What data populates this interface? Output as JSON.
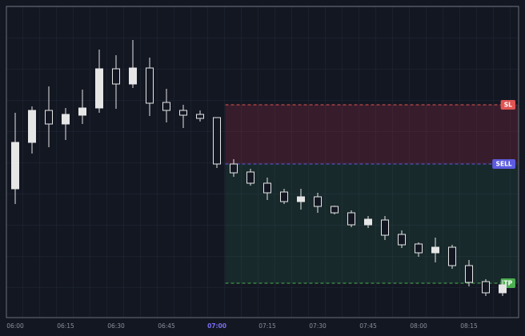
{
  "chart_data": {
    "type": "candlestick",
    "categories": [
      "06:00",
      null,
      null,
      "06:15",
      null,
      null,
      "06:30",
      null,
      null,
      "06:45",
      null,
      null,
      "07:00",
      null,
      null,
      "07:15",
      null,
      null,
      "07:30",
      null,
      null,
      "07:45",
      null,
      null,
      "08:00",
      null,
      null,
      "08:15",
      null,
      null
    ],
    "open": [
      164,
      222,
      262,
      245,
      256,
      265,
      314,
      295,
      315,
      272,
      262,
      257,
      253,
      195,
      185,
      171,
      160,
      148,
      154,
      142,
      134,
      119,
      125,
      107,
      95,
      84,
      91,
      68,
      48,
      34
    ],
    "high": [
      259,
      267,
      292,
      265,
      288,
      338,
      331,
      350,
      328,
      289,
      269,
      262,
      253,
      201,
      189,
      178,
      164,
      164,
      159,
      143,
      137,
      130,
      130,
      112,
      97,
      103,
      94,
      75,
      51,
      50
    ],
    "low": [
      145,
      208,
      216,
      225,
      245,
      259,
      264,
      290,
      255,
      247,
      240,
      248,
      190,
      179,
      168,
      150,
      145,
      138,
      134,
      132,
      116,
      115,
      100,
      90,
      79,
      72,
      64,
      42,
      30,
      30
    ],
    "close": [
      222,
      262,
      245,
      257,
      265,
      314,
      295,
      315,
      271,
      262,
      256,
      252,
      195,
      184,
      171,
      159,
      148,
      154,
      142,
      134,
      119,
      126,
      106,
      94,
      84,
      91,
      68,
      47,
      34,
      44
    ],
    "color": "#e6e6e6",
    "ylim": [
      3,
      392
    ],
    "entry_index": 12,
    "entry_color": "#7b6ff0",
    "levels": [
      {
        "name": "SL",
        "value": 269,
        "color": "#e05454"
      },
      {
        "name": "SELL",
        "value": 195,
        "color": "#5d5ce0"
      },
      {
        "name": "TP",
        "value": 46,
        "color": "#4caf50"
      }
    ]
  }
}
